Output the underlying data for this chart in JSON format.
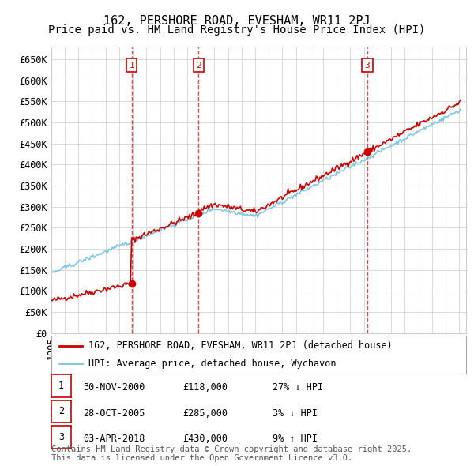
{
  "title": "162, PERSHORE ROAD, EVESHAM, WR11 2PJ",
  "subtitle": "Price paid vs. HM Land Registry's House Price Index (HPI)",
  "ylim": [
    0,
    680000
  ],
  "yticks": [
    0,
    50000,
    100000,
    150000,
    200000,
    250000,
    300000,
    350000,
    400000,
    450000,
    500000,
    550000,
    600000,
    650000
  ],
  "ytick_labels": [
    "£0",
    "£50K",
    "£100K",
    "£150K",
    "£200K",
    "£250K",
    "£300K",
    "£350K",
    "£400K",
    "£450K",
    "£500K",
    "£550K",
    "£600K",
    "£650K"
  ],
  "sale_prices": [
    118000,
    285000,
    430000
  ],
  "sale_labels": [
    "1",
    "2",
    "3"
  ],
  "sale_hpi_pcts": [
    "27% ↓ HPI",
    "3% ↓ HPI",
    "9% ↑ HPI"
  ],
  "sale_date_strs": [
    "30-NOV-2000",
    "28-OCT-2005",
    "03-APR-2018"
  ],
  "sale_price_strs": [
    "£118,000",
    "£285,000",
    "£430,000"
  ],
  "sale_year_floats": [
    2000.917,
    2005.833,
    2018.25
  ],
  "line_color_red": "#cc0000",
  "line_color_blue": "#7ec8e3",
  "vline_color": "#cc0000",
  "grid_color": "#cccccc",
  "background_color": "#ffffff",
  "legend_label_red": "162, PERSHORE ROAD, EVESHAM, WR11 2PJ (detached house)",
  "legend_label_blue": "HPI: Average price, detached house, Wychavon",
  "footer_text": "Contains HM Land Registry data © Crown copyright and database right 2025.\nThis data is licensed under the Open Government Licence v3.0.",
  "title_fontsize": 11,
  "subtitle_fontsize": 10,
  "tick_fontsize": 8.5,
  "legend_fontsize": 8.5,
  "table_fontsize": 8.5,
  "footer_fontsize": 7.5
}
